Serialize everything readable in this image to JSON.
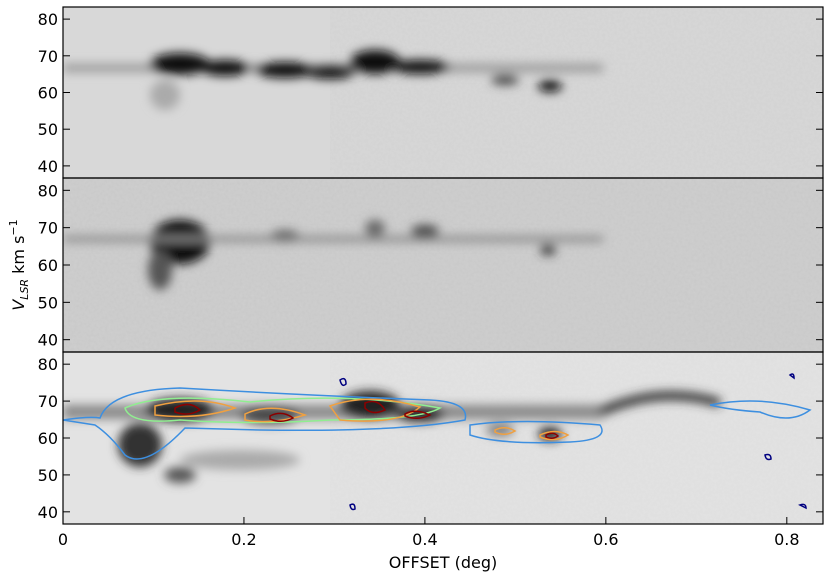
{
  "chart_data": [
    {
      "type": "image",
      "ylim": [
        36.7,
        83.3
      ],
      "yticks": [
        40,
        50,
        60,
        70,
        80
      ],
      "xlim": [
        0,
        0.84
      ]
    },
    {
      "type": "image",
      "ylim": [
        36.7,
        83.3
      ],
      "yticks": [
        40,
        50,
        60,
        70,
        80
      ],
      "xlim": [
        0,
        0.84
      ],
      "y_label": {
        "main": "V",
        "sub": "LSR",
        "unit": " km s",
        "sup": "−1"
      }
    },
    {
      "type": "image",
      "ylim": [
        36.7,
        83.3
      ],
      "yticks": [
        40,
        50,
        60,
        70,
        80
      ],
      "xlim": [
        0,
        0.84
      ],
      "xticks": [
        0,
        0.2,
        0.4,
        0.6,
        0.8
      ],
      "x_label": "OFFSET (deg)"
    }
  ]
}
